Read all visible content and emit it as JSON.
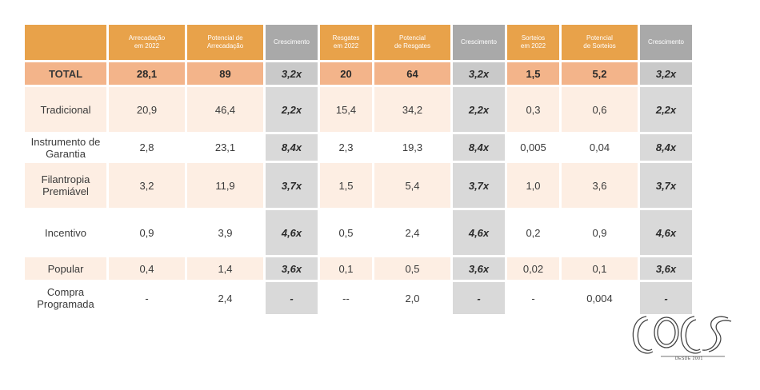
{
  "table": {
    "headers": [
      "",
      "Arrecadação em 2022",
      "Potencial de Arrecadação",
      "Crescimento",
      "Resgates em 2022",
      "Potencial de Resgates",
      "Crescimento",
      "Sorteios em 2022",
      "Potencial de Sorteios",
      "Crescimento"
    ],
    "header_lines": [
      [
        "",
        ""
      ],
      [
        "Arrecadação",
        "em 2022"
      ],
      [
        "Potencial de",
        "Arrecadação"
      ],
      [
        "Crescimento",
        ""
      ],
      [
        "Resgates",
        "em 2022"
      ],
      [
        "Potencial",
        "de Resgates"
      ],
      [
        "Crescimento",
        ""
      ],
      [
        "Sorteios",
        "em 2022"
      ],
      [
        "Potencial",
        "de Sorteios"
      ],
      [
        "Crescimento",
        ""
      ]
    ],
    "rows": [
      {
        "label": [
          "TOTAL",
          ""
        ],
        "cells": [
          "28,1",
          "89",
          "3,2x",
          "20",
          "64",
          "3,2x",
          "1,5",
          "5,2",
          "3,2x"
        ]
      },
      {
        "label": [
          "Tradicional",
          ""
        ],
        "cells": [
          "20,9",
          "46,4",
          "2,2x",
          "15,4",
          "34,2",
          "2,2x",
          "0,3",
          "0,6",
          "2,2x"
        ]
      },
      {
        "label": [
          "Instrumento de",
          "Garantia"
        ],
        "cells": [
          "2,8",
          "23,1",
          "8,4x",
          "2,3",
          "19,3",
          "8,4x",
          "0,005",
          "0,04",
          "8,4x"
        ]
      },
      {
        "label": [
          "Filantropia",
          "Premiável"
        ],
        "cells": [
          "3,2",
          "11,9",
          "3,7x",
          "1,5",
          "5,4",
          "3,7x",
          "1,0",
          "3,6",
          "3,7x"
        ]
      },
      {
        "label": [
          "Incentivo",
          ""
        ],
        "cells": [
          "0,9",
          "3,9",
          "4,6x",
          "0,5",
          "2,4",
          "4,6x",
          "0,2",
          "0,9",
          "4,6x"
        ]
      },
      {
        "label": [
          "Popular",
          ""
        ],
        "cells": [
          "0,4",
          "1,4",
          "3,6x",
          "0,1",
          "0,5",
          "3,6x",
          "0,02",
          "0,1",
          "3,6x"
        ]
      },
      {
        "label": [
          "Compra",
          "Programada"
        ],
        "cells": [
          "-",
          "2,4",
          "-",
          "--",
          "2,0",
          "-",
          "-",
          "0,004",
          "-"
        ]
      }
    ]
  },
  "logo": {
    "tagline": "DESDE 2001"
  }
}
